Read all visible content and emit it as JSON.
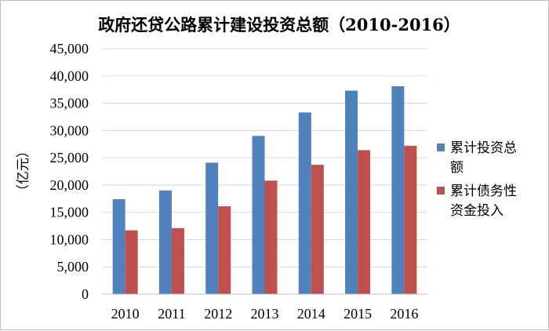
{
  "chart_data": {
    "type": "bar",
    "title": "政府还贷公路累计建设投资总额（2010-2016）",
    "xlabel": "",
    "ylabel": "（亿元）",
    "ylim": [
      0,
      45000
    ],
    "y_ticks": [
      "0",
      "5,000",
      "10,000",
      "15,000",
      "20,000",
      "25,000",
      "30,000",
      "35,000",
      "40,000",
      "45,000"
    ],
    "categories": [
      "2010",
      "2011",
      "2012",
      "2013",
      "2014",
      "2015",
      "2016"
    ],
    "grid": true,
    "legend_position": "right",
    "series": [
      {
        "name": "累计投资总额",
        "legend_lines": [
          "累计投资总",
          "额"
        ],
        "color": "#4f81bd",
        "values": [
          17400,
          19000,
          24100,
          29000,
          33300,
          37300,
          38100
        ]
      },
      {
        "name": "累计债务性资金投入",
        "legend_lines": [
          "累计债务性",
          "资金投入"
        ],
        "color": "#c0504d",
        "values": [
          11700,
          12100,
          16100,
          20800,
          23700,
          26400,
          27200
        ]
      }
    ]
  }
}
